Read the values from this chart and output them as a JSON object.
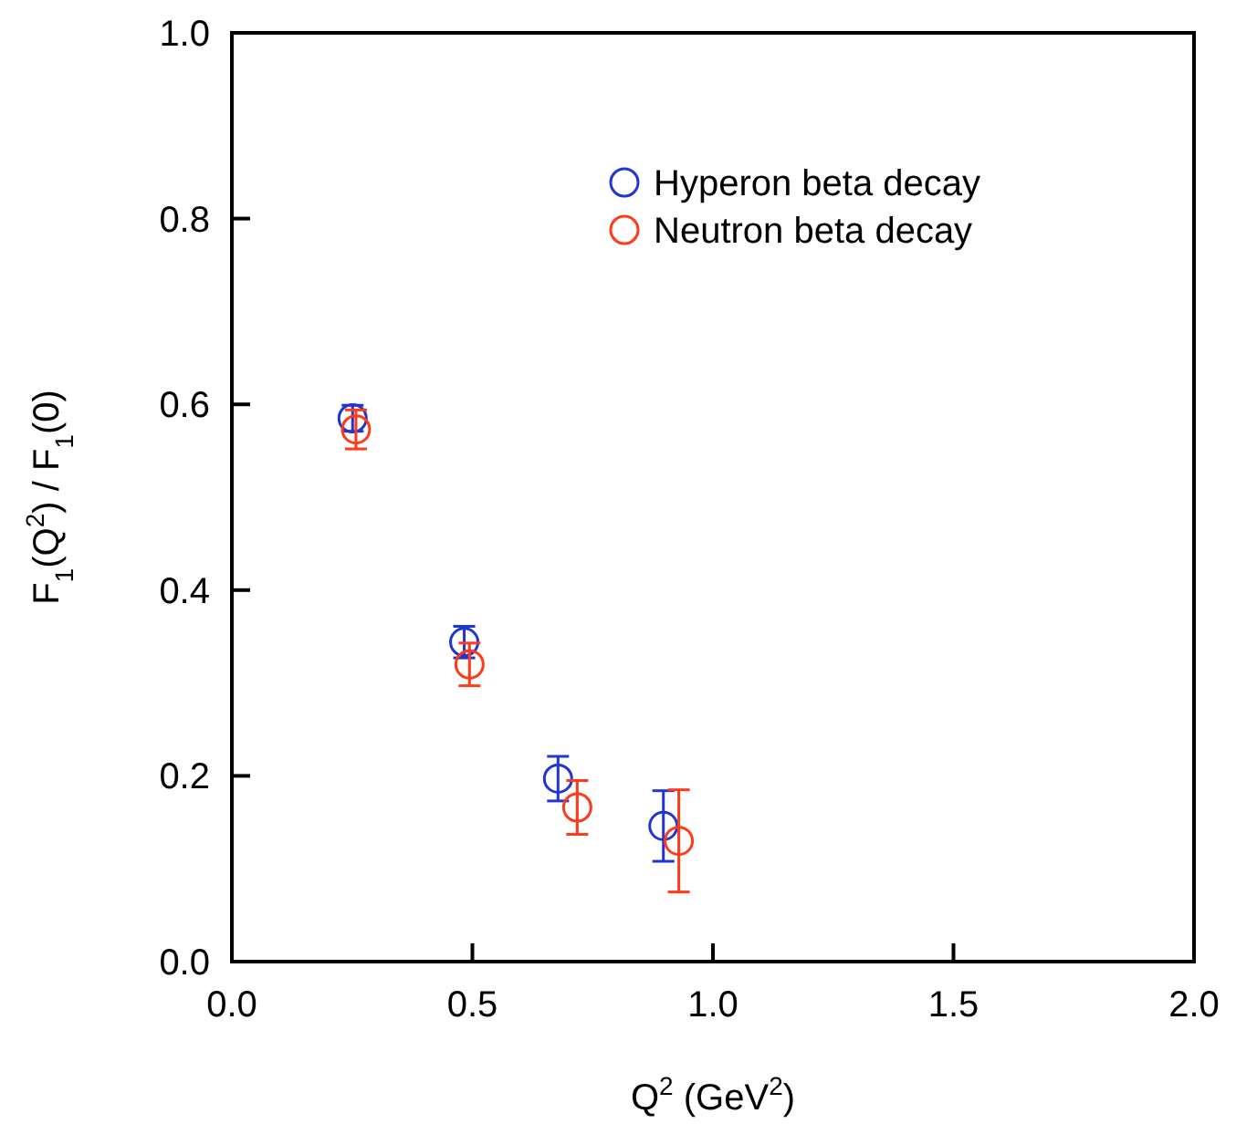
{
  "chart_data": {
    "type": "scatter",
    "xlabel": "Q$^{2}$  (GeV$^{2}$)",
    "ylabel": "F$_{1}$(Q$^{2}$) / F$_{1}$(0)",
    "xlim": [
      0,
      2
    ],
    "ylim": [
      0,
      1
    ],
    "xticks": [
      {
        "value": 0,
        "label": "0.0"
      },
      0.5,
      {
        "value": 1,
        "label": "1.0"
      },
      1.5,
      {
        "value": 2,
        "label": "2.0"
      }
    ],
    "yticks": [
      {
        "value": 0,
        "label": "0.0"
      },
      0.2,
      0.4,
      0.6,
      0.8,
      {
        "value": 1,
        "label": "1.0"
      }
    ],
    "grid": false,
    "legend": "top right",
    "marker": "circle",
    "series": [
      {
        "name": "Hyperon beta decay",
        "color": "#1f35d6",
        "x": [
          0.251,
          0.483,
          0.678,
          0.897
        ],
        "values": [
          0.585,
          0.344,
          0.197,
          0.146
        ],
        "errors": [
          0.014,
          0.017,
          0.024,
          0.038
        ]
      },
      {
        "name": "Neutron beta decay",
        "color": "#ff3a1a",
        "x": [
          0.258,
          0.494,
          0.718,
          0.929
        ],
        "values": [
          0.573,
          0.32,
          0.166,
          0.13
        ],
        "errors": [
          0.021,
          0.023,
          0.029,
          0.055
        ]
      }
    ]
  }
}
